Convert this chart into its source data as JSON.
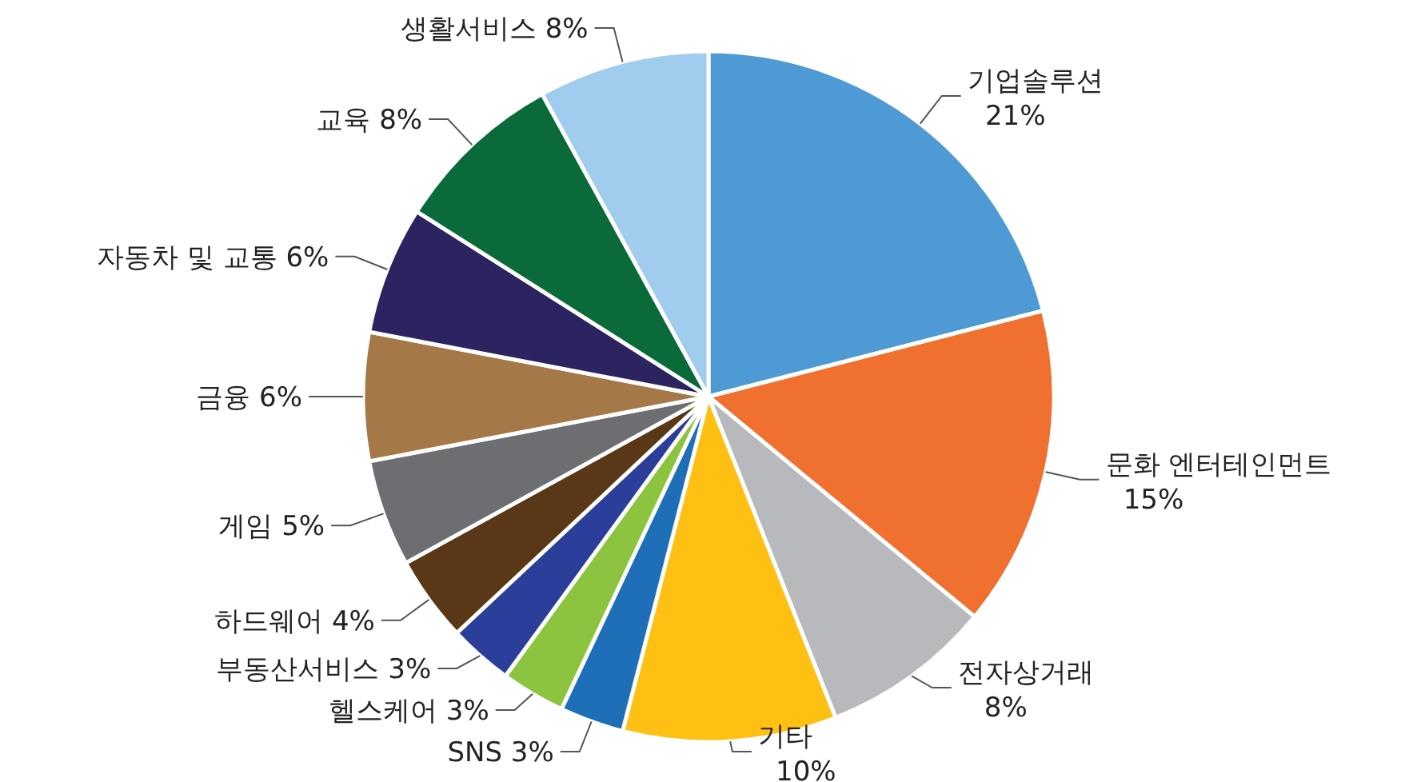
{
  "chart_data": {
    "type": "pie",
    "categories": [
      "기업솔루션",
      "문화 엔터테인먼트",
      "전자상거래",
      "기타",
      "SNS",
      "헬스케어",
      "부동산서비스",
      "하드웨어",
      "게임",
      "금융",
      "자동차 및 교통",
      "교육",
      "생활서비스"
    ],
    "values": [
      21,
      15,
      8,
      10,
      3,
      3,
      3,
      4,
      5,
      6,
      6,
      8,
      8
    ],
    "value_labels": [
      "21%",
      "15%",
      "8%",
      "10%",
      "3%",
      "3%",
      "3%",
      "4%",
      "5%",
      "6%",
      "6%",
      "8%",
      "8%"
    ],
    "colors": [
      "#4e9ad4",
      "#f07030",
      "#b8b9bc",
      "#ffc014",
      "#1f6fb8",
      "#8dc43f",
      "#2b3f9a",
      "#5a3716",
      "#6d6e71",
      "#a57848",
      "#2b2461",
      "#0b6a3a",
      "#a0cced"
    ],
    "legend": false
  }
}
